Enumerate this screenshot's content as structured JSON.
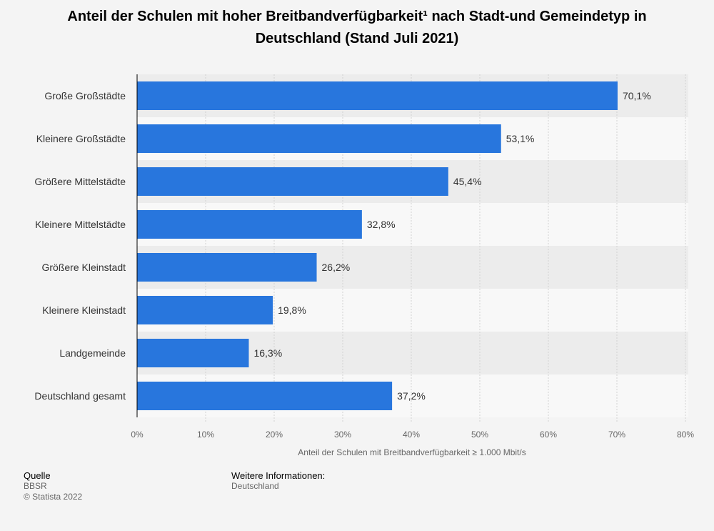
{
  "chart_data": {
    "type": "bar",
    "orientation": "horizontal",
    "title": "Anteil der Schulen mit hoher Breitbandverfügbarkeit¹ nach Stadt-und Gemeindetyp in Deutschland (Stand Juli 2021)",
    "categories": [
      "Große Großstädte",
      "Kleinere Großstädte",
      "Größere Mittelstädte",
      "Kleinere Mittelstädte",
      "Größere Kleinstadt",
      "Kleinere Kleinstadt",
      "Landgemeinde",
      "Deutschland gesamt"
    ],
    "values": [
      70.1,
      53.1,
      45.4,
      32.8,
      26.2,
      19.8,
      16.3,
      37.2
    ],
    "value_labels": [
      "70,1%",
      "53,1%",
      "45,4%",
      "32,8%",
      "26,2%",
      "19,8%",
      "16,3%",
      "37,2%"
    ],
    "xlabel": "Anteil der Schulen mit Breitbandverfügbarkeit ≥ 1.000 Mbit/s",
    "ylabel": "",
    "xlim": [
      0,
      80
    ],
    "ticks": [
      0,
      10,
      20,
      30,
      40,
      50,
      60,
      70,
      80
    ],
    "tick_labels": [
      "0%",
      "10%",
      "20%",
      "30%",
      "40%",
      "50%",
      "60%",
      "70%",
      "80%"
    ],
    "grid": true,
    "bar_color": "#2876dd"
  },
  "footer": {
    "source_heading": "Quelle",
    "source": "BBSR",
    "copyright": "© Statista 2022",
    "info_heading": "Weitere Informationen:",
    "info": "Deutschland"
  }
}
